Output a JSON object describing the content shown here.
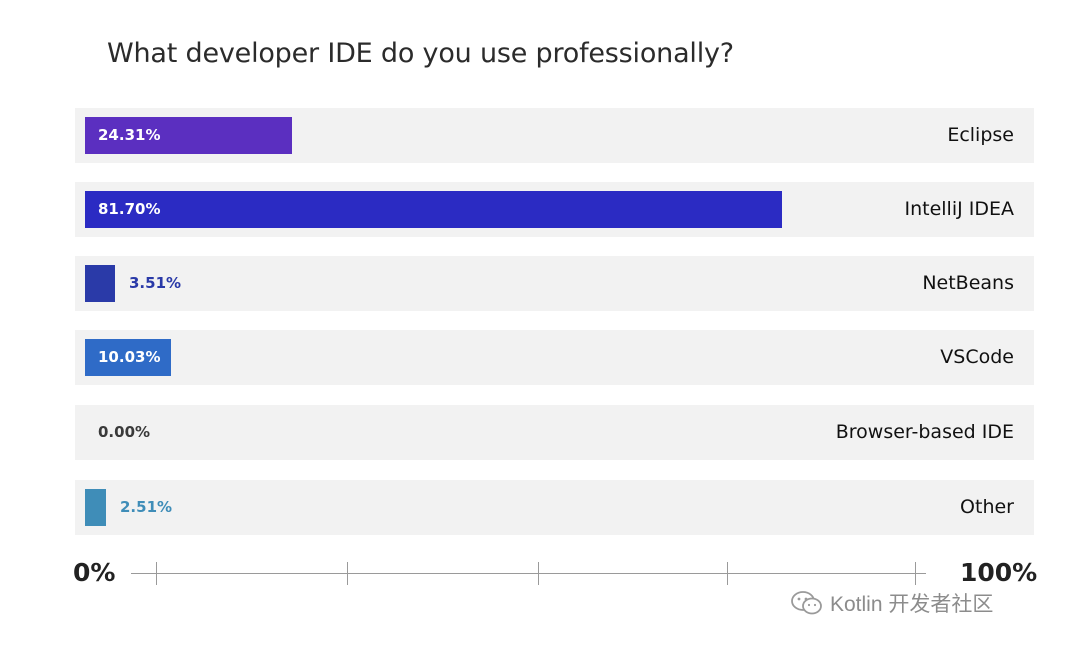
{
  "chart_data": {
    "type": "bar",
    "orientation": "horizontal",
    "title": "What developer IDE do you use professionally?",
    "categories": [
      "Eclipse",
      "IntelliJ IDEA",
      "NetBeans",
      "VSCode",
      "Browser-based IDE",
      "Other"
    ],
    "values": [
      24.31,
      81.7,
      3.51,
      10.03,
      0.0,
      2.51
    ],
    "value_labels": [
      "24.31%",
      "81.70%",
      "3.51%",
      "10.03%",
      "0.00%",
      "2.51%"
    ],
    "colors": [
      "#5b2fc0",
      "#2b2bc3",
      "#2a3aa8",
      "#2f6bc7",
      "#3a3a3a",
      "#3f8db8"
    ],
    "xlim": [
      0,
      100
    ],
    "axis_min_label": "0%",
    "axis_max_label": "100%",
    "grid": false
  },
  "watermark": {
    "text": "Kotlin 开发者社区",
    "icon": "wechat-icon"
  }
}
